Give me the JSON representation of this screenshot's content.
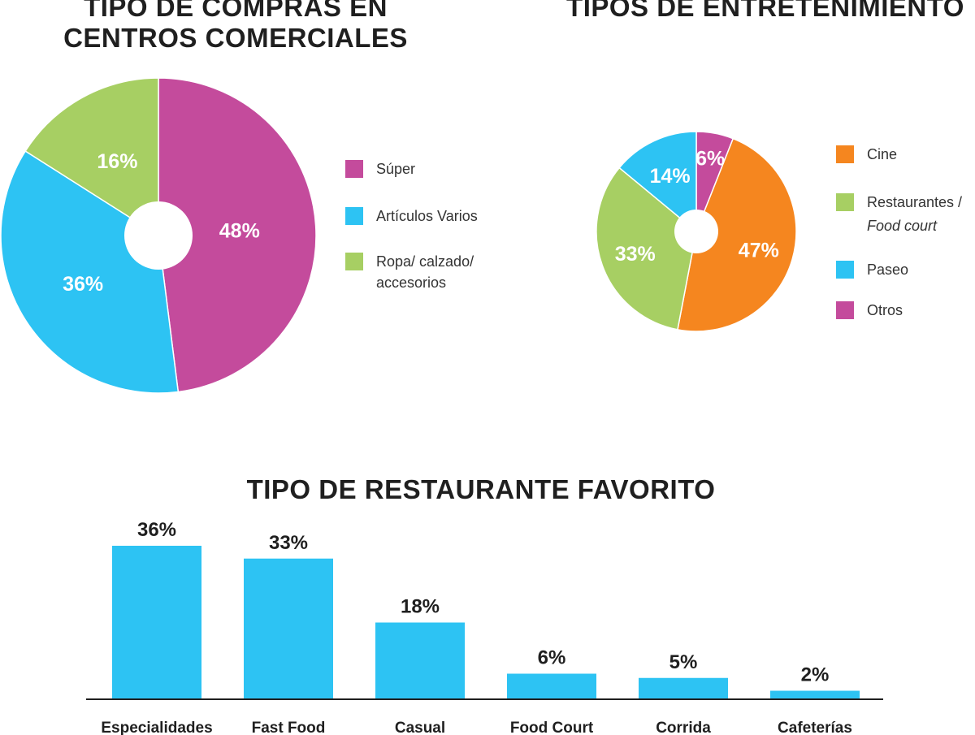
{
  "colors": {
    "magenta": "#C44B9C",
    "cyan": "#2DC3F3",
    "green": "#A7CF63",
    "orange": "#F5861F",
    "white": "#FFFFFF"
  },
  "chart_data": [
    {
      "type": "pie",
      "title_lines": [
        "TIPO DE COMPRAS EN",
        "CENTROS COMERCIALES"
      ],
      "slices": [
        {
          "label": "Súper",
          "value": 48,
          "display": "48%",
          "color": "#C44B9C"
        },
        {
          "label": "Artículos Varios",
          "value": 36,
          "display": "36%",
          "color": "#2DC3F3"
        },
        {
          "label": "Ropa/ calzado/ accesorios",
          "label_lines": [
            "Ropa/ calzado/",
            "accesorios"
          ],
          "value": 16,
          "display": "16%",
          "color": "#A7CF63"
        }
      ],
      "legend": "right"
    },
    {
      "type": "pie",
      "title_lines": [
        "TIPOS DE ENTRETENIMIENTO"
      ],
      "slices": [
        {
          "label": "Otros",
          "value": 6,
          "display": "6%",
          "color": "#C44B9C"
        },
        {
          "label": "Cine",
          "value": 47,
          "display": "47%",
          "color": "#F5861F"
        },
        {
          "label": "Restaurantes / Food court",
          "value": 33,
          "display": "33%",
          "color": "#A7CF63"
        },
        {
          "label": "Paseo",
          "value": 14,
          "display": "14%",
          "color": "#2DC3F3"
        }
      ],
      "legend_items": [
        {
          "lines": [
            "Cine"
          ],
          "color": "#F5861F"
        },
        {
          "lines": [
            "Restaurantes /",
            "Food court"
          ],
          "italic_line": 1,
          "color": "#A7CF63"
        },
        {
          "lines": [
            "Paseo"
          ],
          "color": "#2DC3F3"
        },
        {
          "lines": [
            "Otros"
          ],
          "color": "#C44B9C"
        }
      ],
      "legend": "right"
    },
    {
      "type": "bar",
      "title": "TIPO DE RESTAURANTE FAVORITO",
      "categories": [
        "Especialidades",
        "Fast Food",
        "Casual",
        "Food Court",
        "Corrida",
        "Cafeterías"
      ],
      "values": [
        36,
        33,
        18,
        6,
        5,
        2
      ],
      "value_labels": [
        "36%",
        "33%",
        "18%",
        "6%",
        "5%",
        "2%"
      ],
      "color": "#2DC3F3",
      "ylim": [
        0,
        36
      ],
      "grid": false
    }
  ]
}
